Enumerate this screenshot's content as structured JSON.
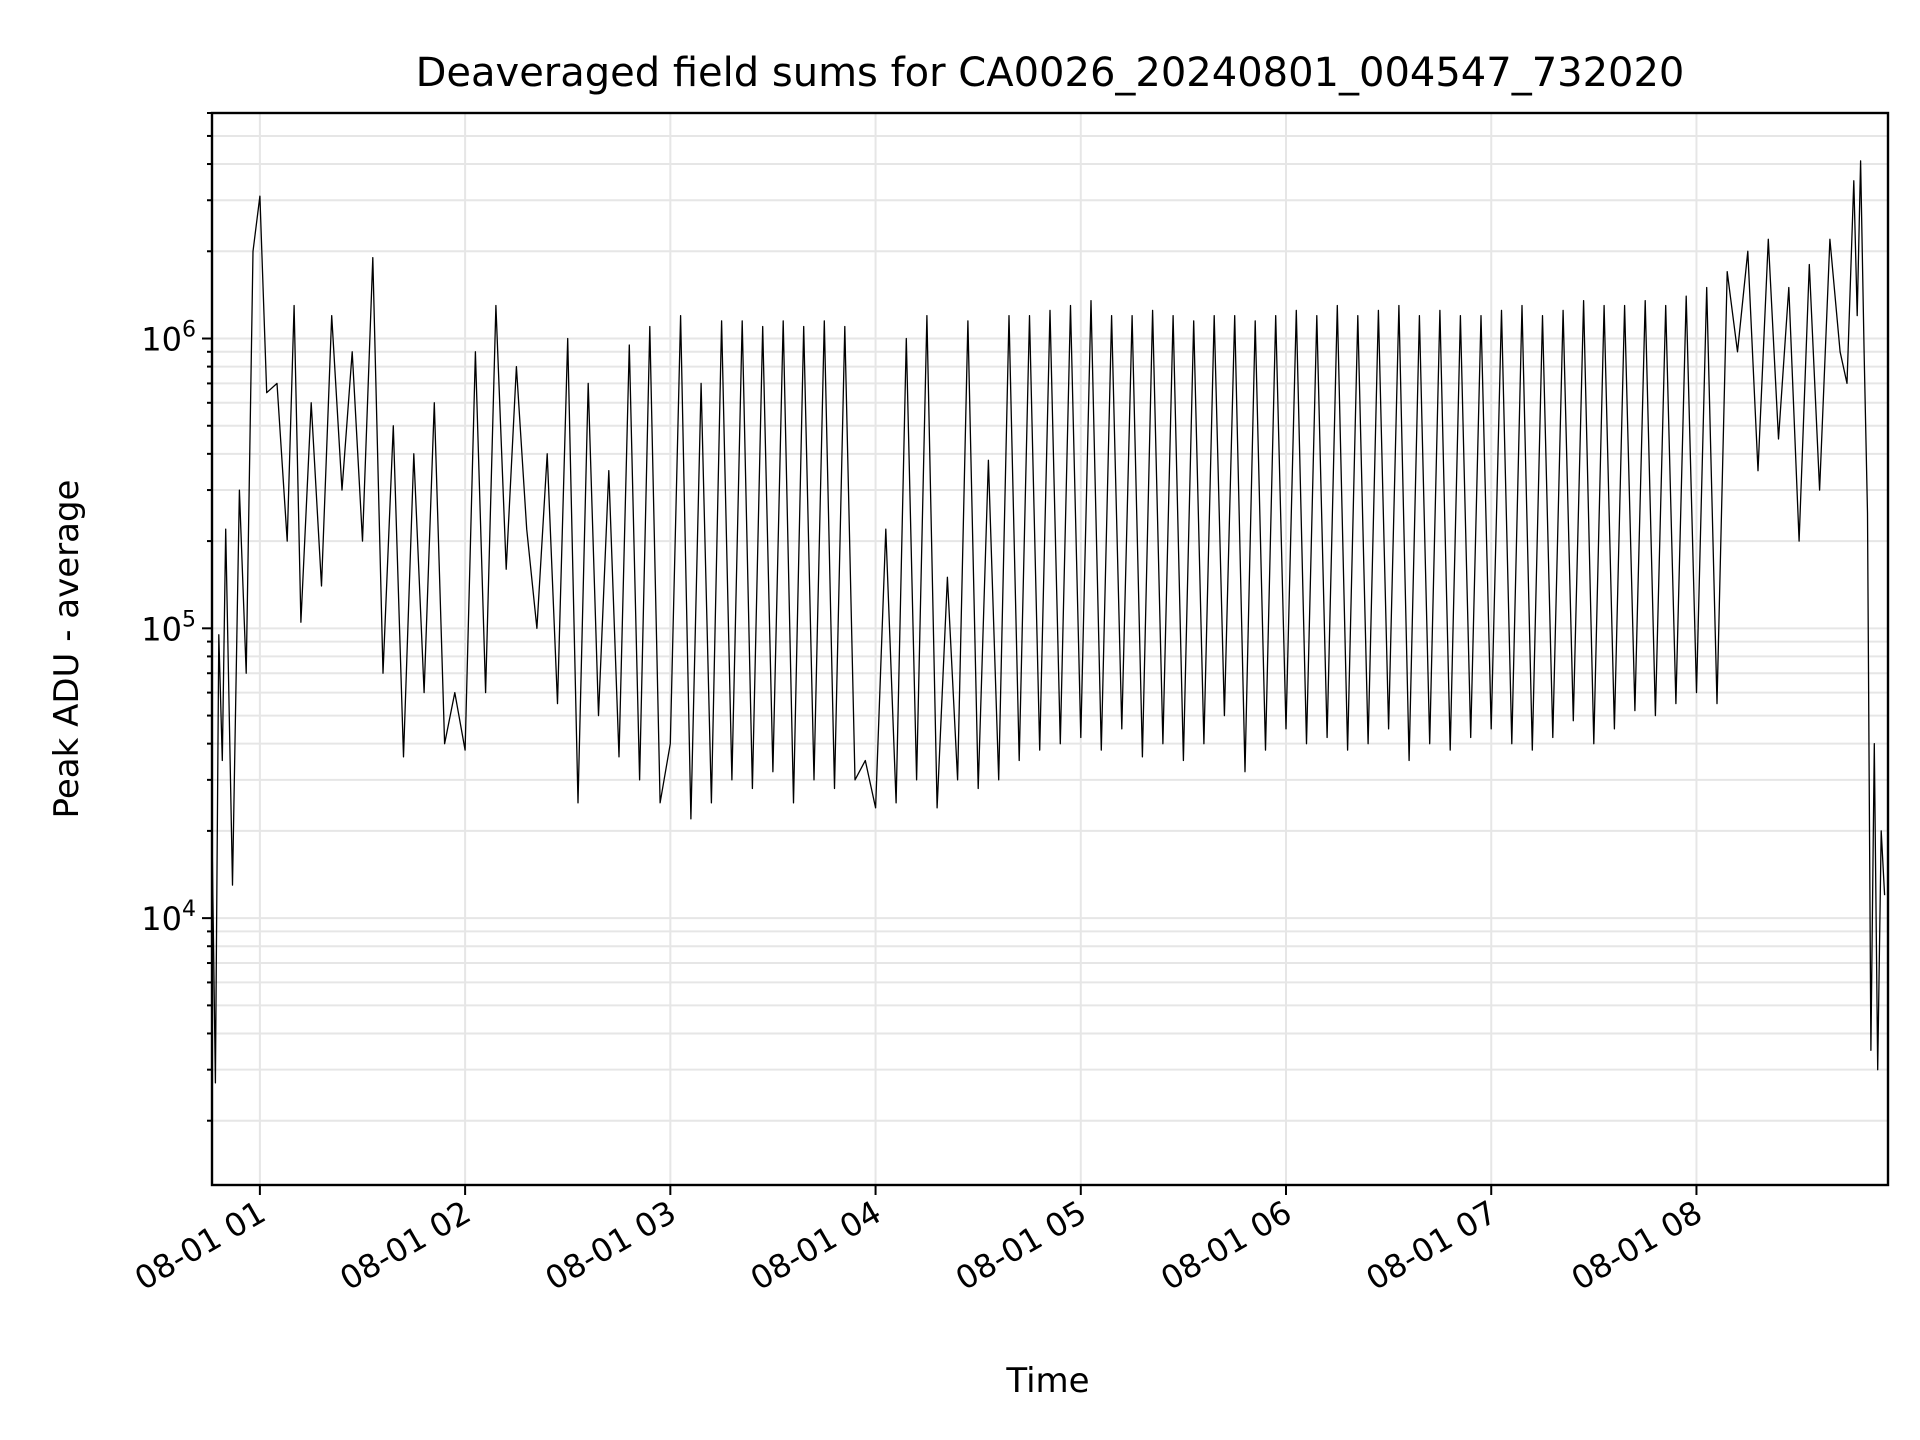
{
  "chart_data": {
    "type": "line",
    "title": "Deaveraged field sums for CA0026_20240801_004547_732020",
    "xlabel": "Time",
    "ylabel": "Peak ADU - average",
    "yscale": "log",
    "xlim": [
      "2024-08-01 00:46",
      "2024-08-01 08:56"
    ],
    "ylim": [
      1200,
      6000000
    ],
    "grid": true,
    "x_ticks": [
      "08-01 01",
      "08-01 02",
      "08-01 03",
      "08-01 04",
      "08-01 05",
      "08-01 06",
      "08-01 07",
      "08-01 08"
    ],
    "y_ticks": [
      {
        "base": "10",
        "exp": "4",
        "value": 10000
      },
      {
        "base": "10",
        "exp": "5",
        "value": 100000
      },
      {
        "base": "10",
        "exp": "6",
        "value": 1000000
      }
    ],
    "line_color": "#000000",
    "x": [
      "2024-08-01 00:46",
      "2024-08-01 00:47",
      "2024-08-01 00:48",
      "2024-08-01 00:49",
      "2024-08-01 00:50",
      "2024-08-01 00:52",
      "2024-08-01 00:54",
      "2024-08-01 00:56",
      "2024-08-01 00:58",
      "2024-08-01 01:00",
      "2024-08-01 01:02",
      "2024-08-01 01:05",
      "2024-08-01 01:08",
      "2024-08-01 01:10",
      "2024-08-01 01:12",
      "2024-08-01 01:15",
      "2024-08-01 01:18",
      "2024-08-01 01:21",
      "2024-08-01 01:24",
      "2024-08-01 01:27",
      "2024-08-01 01:30",
      "2024-08-01 01:33",
      "2024-08-01 01:36",
      "2024-08-01 01:39",
      "2024-08-01 01:42",
      "2024-08-01 01:45",
      "2024-08-01 01:48",
      "2024-08-01 01:51",
      "2024-08-01 01:54",
      "2024-08-01 01:57",
      "2024-08-01 02:00",
      "2024-08-01 02:03",
      "2024-08-01 02:06",
      "2024-08-01 02:09",
      "2024-08-01 02:12",
      "2024-08-01 02:15",
      "2024-08-01 02:18",
      "2024-08-01 02:21",
      "2024-08-01 02:24",
      "2024-08-01 02:27",
      "2024-08-01 02:30",
      "2024-08-01 02:33",
      "2024-08-01 02:36",
      "2024-08-01 02:39",
      "2024-08-01 02:42",
      "2024-08-01 02:45",
      "2024-08-01 02:48",
      "2024-08-01 02:51",
      "2024-08-01 02:54",
      "2024-08-01 02:57",
      "2024-08-01 03:00",
      "2024-08-01 03:03",
      "2024-08-01 03:06",
      "2024-08-01 03:09",
      "2024-08-01 03:12",
      "2024-08-01 03:15",
      "2024-08-01 03:18",
      "2024-08-01 03:21",
      "2024-08-01 03:24",
      "2024-08-01 03:27",
      "2024-08-01 03:30",
      "2024-08-01 03:33",
      "2024-08-01 03:36",
      "2024-08-01 03:39",
      "2024-08-01 03:42",
      "2024-08-01 03:45",
      "2024-08-01 03:48",
      "2024-08-01 03:51",
      "2024-08-01 03:54",
      "2024-08-01 03:57",
      "2024-08-01 04:00",
      "2024-08-01 04:03",
      "2024-08-01 04:06",
      "2024-08-01 04:09",
      "2024-08-01 04:12",
      "2024-08-01 04:15",
      "2024-08-01 04:18",
      "2024-08-01 04:21",
      "2024-08-01 04:24",
      "2024-08-01 04:27",
      "2024-08-01 04:30",
      "2024-08-01 04:33",
      "2024-08-01 04:36",
      "2024-08-01 04:39",
      "2024-08-01 04:42",
      "2024-08-01 04:45",
      "2024-08-01 04:48",
      "2024-08-01 04:51",
      "2024-08-01 04:54",
      "2024-08-01 04:57",
      "2024-08-01 05:00",
      "2024-08-01 05:03",
      "2024-08-01 05:06",
      "2024-08-01 05:09",
      "2024-08-01 05:12",
      "2024-08-01 05:15",
      "2024-08-01 05:18",
      "2024-08-01 05:21",
      "2024-08-01 05:24",
      "2024-08-01 05:27",
      "2024-08-01 05:30",
      "2024-08-01 05:33",
      "2024-08-01 05:36",
      "2024-08-01 05:39",
      "2024-08-01 05:42",
      "2024-08-01 05:45",
      "2024-08-01 05:48",
      "2024-08-01 05:51",
      "2024-08-01 05:54",
      "2024-08-01 05:57",
      "2024-08-01 06:00",
      "2024-08-01 06:03",
      "2024-08-01 06:06",
      "2024-08-01 06:09",
      "2024-08-01 06:12",
      "2024-08-01 06:15",
      "2024-08-01 06:18",
      "2024-08-01 06:21",
      "2024-08-01 06:24",
      "2024-08-01 06:27",
      "2024-08-01 06:30",
      "2024-08-01 06:33",
      "2024-08-01 06:36",
      "2024-08-01 06:39",
      "2024-08-01 06:42",
      "2024-08-01 06:45",
      "2024-08-01 06:48",
      "2024-08-01 06:51",
      "2024-08-01 06:54",
      "2024-08-01 06:57",
      "2024-08-01 07:00",
      "2024-08-01 07:03",
      "2024-08-01 07:06",
      "2024-08-01 07:09",
      "2024-08-01 07:12",
      "2024-08-01 07:15",
      "2024-08-01 07:18",
      "2024-08-01 07:21",
      "2024-08-01 07:24",
      "2024-08-01 07:27",
      "2024-08-01 07:30",
      "2024-08-01 07:33",
      "2024-08-01 07:36",
      "2024-08-01 07:39",
      "2024-08-01 07:42",
      "2024-08-01 07:45",
      "2024-08-01 07:48",
      "2024-08-01 07:51",
      "2024-08-01 07:54",
      "2024-08-01 07:57",
      "2024-08-01 08:00",
      "2024-08-01 08:03",
      "2024-08-01 08:06",
      "2024-08-01 08:09",
      "2024-08-01 08:12",
      "2024-08-01 08:15",
      "2024-08-01 08:18",
      "2024-08-01 08:21",
      "2024-08-01 08:24",
      "2024-08-01 08:27",
      "2024-08-01 08:30",
      "2024-08-01 08:33",
      "2024-08-01 08:36",
      "2024-08-01 08:39",
      "2024-08-01 08:42",
      "2024-08-01 08:44",
      "2024-08-01 08:46",
      "2024-08-01 08:47",
      "2024-08-01 08:48",
      "2024-08-01 08:49",
      "2024-08-01 08:50",
      "2024-08-01 08:51",
      "2024-08-01 08:52",
      "2024-08-01 08:53",
      "2024-08-01 08:54",
      "2024-08-01 08:55"
    ],
    "y": [
      20000,
      2700,
      95000,
      35000,
      220000,
      13000,
      300000,
      70000,
      2000000,
      3100000,
      650000,
      700000,
      200000,
      1300000,
      105000,
      600000,
      140000,
      1200000,
      300000,
      900000,
      200000,
      1900000,
      70000,
      500000,
      36000,
      400000,
      60000,
      600000,
      40000,
      60000,
      38000,
      900000,
      60000,
      1300000,
      160000,
      800000,
      220000,
      100000,
      400000,
      55000,
      1000000,
      25000,
      700000,
      50000,
      350000,
      36000,
      950000,
      30000,
      1100000,
      25000,
      40000,
      1200000,
      22000,
      700000,
      25000,
      1150000,
      30000,
      1150000,
      28000,
      1100000,
      32000,
      1150000,
      25000,
      1100000,
      30000,
      1150000,
      28000,
      1100000,
      30000,
      35000,
      24000,
      220000,
      25000,
      1000000,
      30000,
      1200000,
      24000,
      150000,
      30000,
      1150000,
      28000,
      380000,
      30000,
      1200000,
      35000,
      1200000,
      38000,
      1250000,
      40000,
      1300000,
      42000,
      1350000,
      38000,
      1200000,
      45000,
      1200000,
      36000,
      1250000,
      40000,
      1200000,
      35000,
      1150000,
      40000,
      1200000,
      50000,
      1200000,
      32000,
      1150000,
      38000,
      1200000,
      45000,
      1250000,
      40000,
      1200000,
      42000,
      1300000,
      38000,
      1200000,
      40000,
      1250000,
      45000,
      1300000,
      35000,
      1200000,
      40000,
      1250000,
      38000,
      1200000,
      42000,
      1200000,
      45000,
      1250000,
      40000,
      1300000,
      38000,
      1200000,
      42000,
      1250000,
      48000,
      1350000,
      40000,
      1300000,
      45000,
      1300000,
      52000,
      1350000,
      50000,
      1300000,
      55000,
      1400000,
      60000,
      1500000,
      55000,
      1700000,
      900000,
      2000000,
      350000,
      2200000,
      450000,
      1500000,
      200000,
      1800000,
      300000,
      2200000,
      900000,
      700000,
      3500000,
      1200000,
      4100000,
      900000,
      250000,
      3500,
      40000,
      3000,
      20000,
      12000
    ]
  }
}
